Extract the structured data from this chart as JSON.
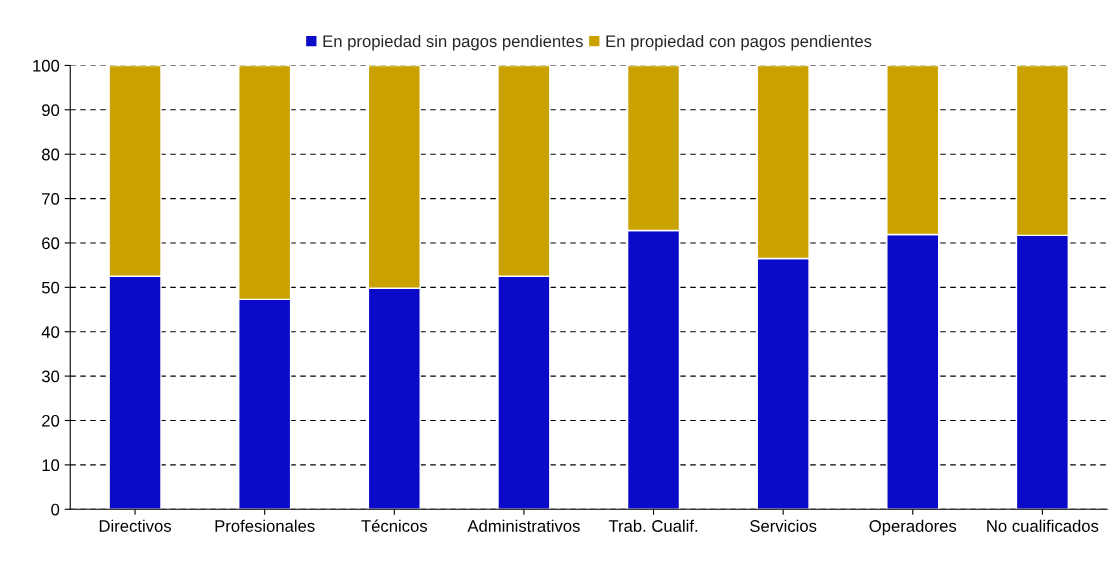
{
  "chart_data": {
    "type": "bar",
    "stacked": true,
    "categories": [
      "Directivos",
      "Profesionales",
      "Técnicos",
      "Administrativos",
      "Trab. Cualif.",
      "Servicios",
      "Operadores",
      "No cualificados"
    ],
    "series": [
      {
        "name": "En propiedad sin pagos pendientes",
        "color": "#0a0ac8",
        "values": [
          52.5,
          47.3,
          49.8,
          52.5,
          62.8,
          56.5,
          61.9,
          61.7
        ]
      },
      {
        "name": "En propiedad con pagos pendientes",
        "color": "#c9a200",
        "values": [
          47.5,
          52.7,
          50.2,
          47.5,
          37.2,
          43.5,
          38.1,
          38.3
        ]
      }
    ],
    "ylim": [
      0,
      100
    ],
    "yticks": [
      0,
      10,
      20,
      30,
      40,
      50,
      60,
      70,
      80,
      90,
      100
    ],
    "grid": "y",
    "legend": "top"
  }
}
